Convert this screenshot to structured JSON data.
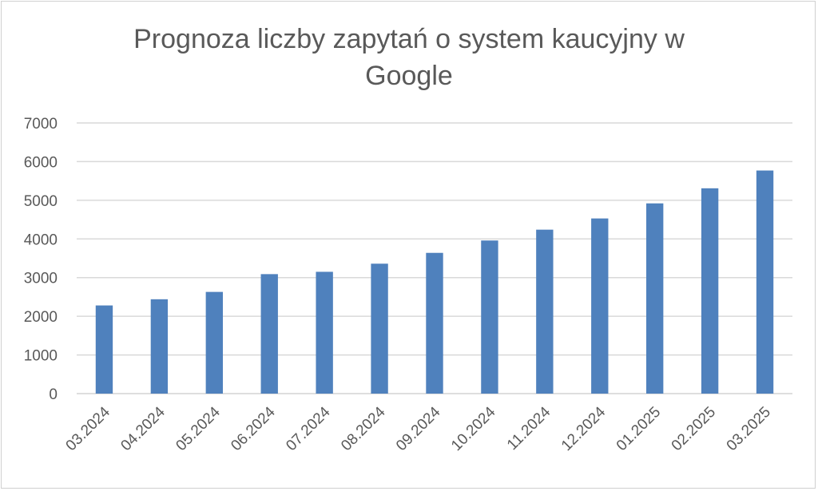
{
  "chart_data": {
    "type": "bar",
    "title": "Prognoza liczby zapytań o system kaucyjny w Google",
    "title_lines": [
      "Prognoza liczby zapytań o system kaucyjny w",
      "Google"
    ],
    "xlabel": "",
    "ylabel": "",
    "categories": [
      "03.2024",
      "04.2024",
      "05.2024",
      "06.2024",
      "07.2024",
      "08.2024",
      "09.2024",
      "10.2024",
      "11.2024",
      "12.2024",
      "01.2025",
      "02.2025",
      "03.2025"
    ],
    "values": [
      2280,
      2440,
      2630,
      3090,
      3150,
      3360,
      3640,
      3960,
      4240,
      4530,
      4920,
      5310,
      5770
    ],
    "ylim": [
      0,
      7000
    ],
    "yticks": [
      0,
      1000,
      2000,
      3000,
      4000,
      5000,
      6000,
      7000
    ],
    "grid": true,
    "legend": "none",
    "bar_color": "#4f81bd",
    "grid_color": "#d9d9d9",
    "text_color": "#595959"
  }
}
